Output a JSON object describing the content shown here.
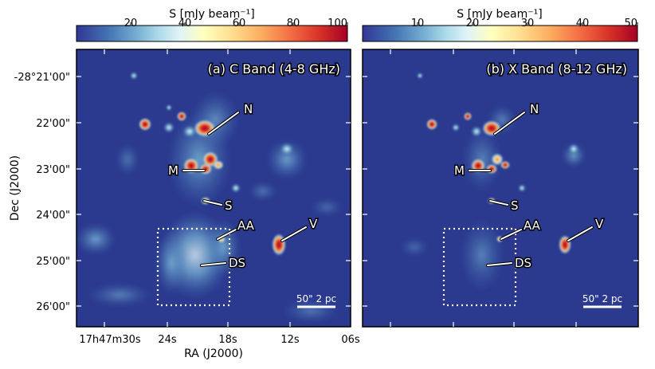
{
  "colorbars": [
    {
      "label": "S [mJy beam⁻¹]",
      "ticks": [
        "20",
        "40",
        "60",
        "80",
        "100"
      ],
      "range": [
        0,
        100
      ],
      "tick_values": [
        20,
        40,
        60,
        80,
        100
      ]
    },
    {
      "label": "S [mJy beam⁻¹]",
      "ticks": [
        "10",
        "20",
        "30",
        "40",
        "50"
      ],
      "range": [
        0,
        50
      ],
      "tick_values": [
        10,
        20,
        30,
        40,
        50
      ]
    }
  ],
  "panels": [
    {
      "title": "(a) C Band (4-8 GHz)",
      "labels": [
        "N",
        "M",
        "S",
        "AA",
        "V",
        "DS"
      ],
      "scalebar": "50\" 2 pc"
    },
    {
      "title": "(b) X Band (8-12 GHz)",
      "labels": [
        "N",
        "M",
        "S",
        "AA",
        "V",
        "DS"
      ],
      "scalebar": "50\" 2 pc"
    }
  ],
  "axes": {
    "ylabel": "Dec (J2000)",
    "xlabel": "RA (J2000)",
    "yticks": [
      "-28°21'00\"",
      "22'00\"",
      "23'00\"",
      "24'00\"",
      "25'00\"",
      "26'00\""
    ],
    "xticks": [
      "17h47m30s",
      "24s",
      "18s",
      "12s",
      "06s"
    ]
  },
  "colors": {
    "background": "#2b3a8f",
    "colormap": [
      "#313695",
      "#4575b4",
      "#74add1",
      "#abd9e9",
      "#e0f3f8",
      "#ffffbf",
      "#fee090",
      "#fdae61",
      "#f46d43",
      "#d73027",
      "#a50026"
    ]
  }
}
